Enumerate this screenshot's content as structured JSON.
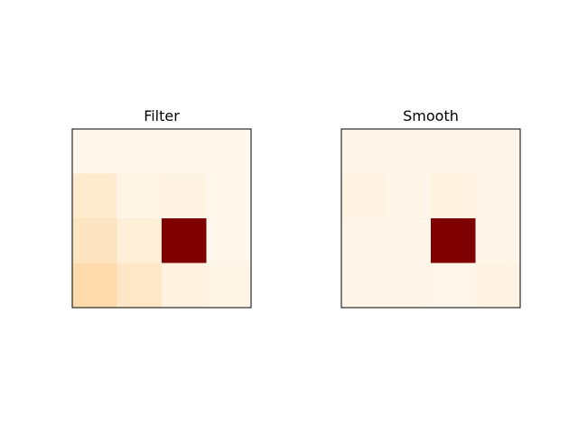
{
  "chart_data": [
    {
      "type": "heatmap",
      "title": "Filter",
      "values": [
        [
          0.01,
          0.01,
          0.01,
          0.01
        ],
        [
          0.12,
          0.03,
          0.04,
          0.01
        ],
        [
          0.15,
          0.08,
          1.0,
          0.01
        ],
        [
          0.22,
          0.14,
          0.05,
          0.03
        ]
      ],
      "colorscale": [
        "#fff7ec",
        "#fee8c8",
        "#fdd49e",
        "#fdbb84",
        "#fc8d59",
        "#ef6548",
        "#d7301f",
        "#b30000",
        "#7f0000"
      ]
    },
    {
      "type": "heatmap",
      "title": "Smooth",
      "values": [
        [
          0.01,
          0.01,
          0.01,
          0.01
        ],
        [
          0.03,
          0.01,
          0.04,
          0.01
        ],
        [
          0.01,
          0.01,
          1.0,
          0.01
        ],
        [
          0.01,
          0.01,
          0.0,
          0.03
        ]
      ],
      "colorscale": [
        "#fff7ec",
        "#fee8c8",
        "#fdd49e",
        "#fdbb84",
        "#fc8d59",
        "#ef6548",
        "#d7301f",
        "#b30000",
        "#7f0000"
      ]
    }
  ]
}
